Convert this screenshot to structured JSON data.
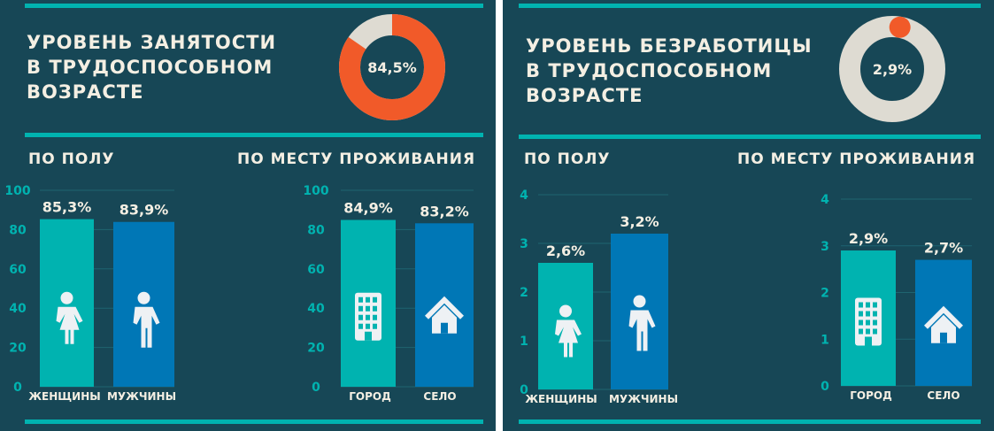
{
  "colors": {
    "bg": "#174756",
    "teal": "#00b3b0",
    "blue": "#0077b6",
    "orange": "#f15a29",
    "ring": "#dedbd2",
    "text": "#f4efe3"
  },
  "left": {
    "title": [
      "УРОВЕНЬ ЗАНЯТОСТИ",
      "В ТРУДОСПОСОБНОМ",
      "ВОЗРАСТЕ"
    ],
    "donut_value": 84.5,
    "donut_label": "84,5%",
    "by_sex": "ПО ПОЛУ",
    "by_residence": "ПО МЕСТУ ПРОЖИВАНИЯ"
  },
  "right": {
    "title": [
      "УРОВЕНЬ БЕЗРАБОТИЦЫ",
      "В ТРУДОСПОСОБНОМ",
      "ВОЗРАСТЕ"
    ],
    "donut_value": 2.9,
    "donut_label": "2,9%",
    "by_sex": "ПО ПОЛУ",
    "by_residence": "ПО МЕСТУ ПРОЖИВАНИЯ"
  },
  "chart_data": [
    {
      "type": "bar",
      "title": "Занятость по полу",
      "categories": [
        "ЖЕНЩИНЫ",
        "МУЖЧИНЫ"
      ],
      "values": [
        85.3,
        83.9
      ],
      "labels": [
        "85,3%",
        "83,9%"
      ],
      "icons": [
        "female-icon",
        "male-icon"
      ],
      "ylim": [
        0,
        100
      ],
      "yticks": [
        0,
        20,
        40,
        60,
        80,
        100
      ]
    },
    {
      "type": "bar",
      "title": "Занятость по месту проживания",
      "categories": [
        "ГОРОД",
        "СЕЛО"
      ],
      "values": [
        84.9,
        83.2
      ],
      "labels": [
        "84,9%",
        "83,2%"
      ],
      "icons": [
        "building-icon",
        "house-icon"
      ],
      "ylim": [
        0,
        100
      ],
      "yticks": [
        0,
        20,
        40,
        60,
        80,
        100
      ]
    },
    {
      "type": "bar",
      "title": "Безработица по полу",
      "categories": [
        "ЖЕНЩИНЫ",
        "МУЖЧИНЫ"
      ],
      "values": [
        2.6,
        3.2
      ],
      "labels": [
        "2,6%",
        "3,2%"
      ],
      "icons": [
        "female-icon",
        "male-icon"
      ],
      "ylim": [
        0,
        4
      ],
      "yticks": [
        0,
        1,
        2,
        3,
        4
      ]
    },
    {
      "type": "bar",
      "title": "Безработица по месту проживания",
      "categories": [
        "ГОРОД",
        "СЕЛО"
      ],
      "values": [
        2.9,
        2.7
      ],
      "labels": [
        "2,9%",
        "2,7%"
      ],
      "icons": [
        "building-icon",
        "house-icon"
      ],
      "ylim": [
        0,
        4
      ],
      "yticks": [
        0,
        1,
        2,
        3,
        4
      ]
    }
  ]
}
